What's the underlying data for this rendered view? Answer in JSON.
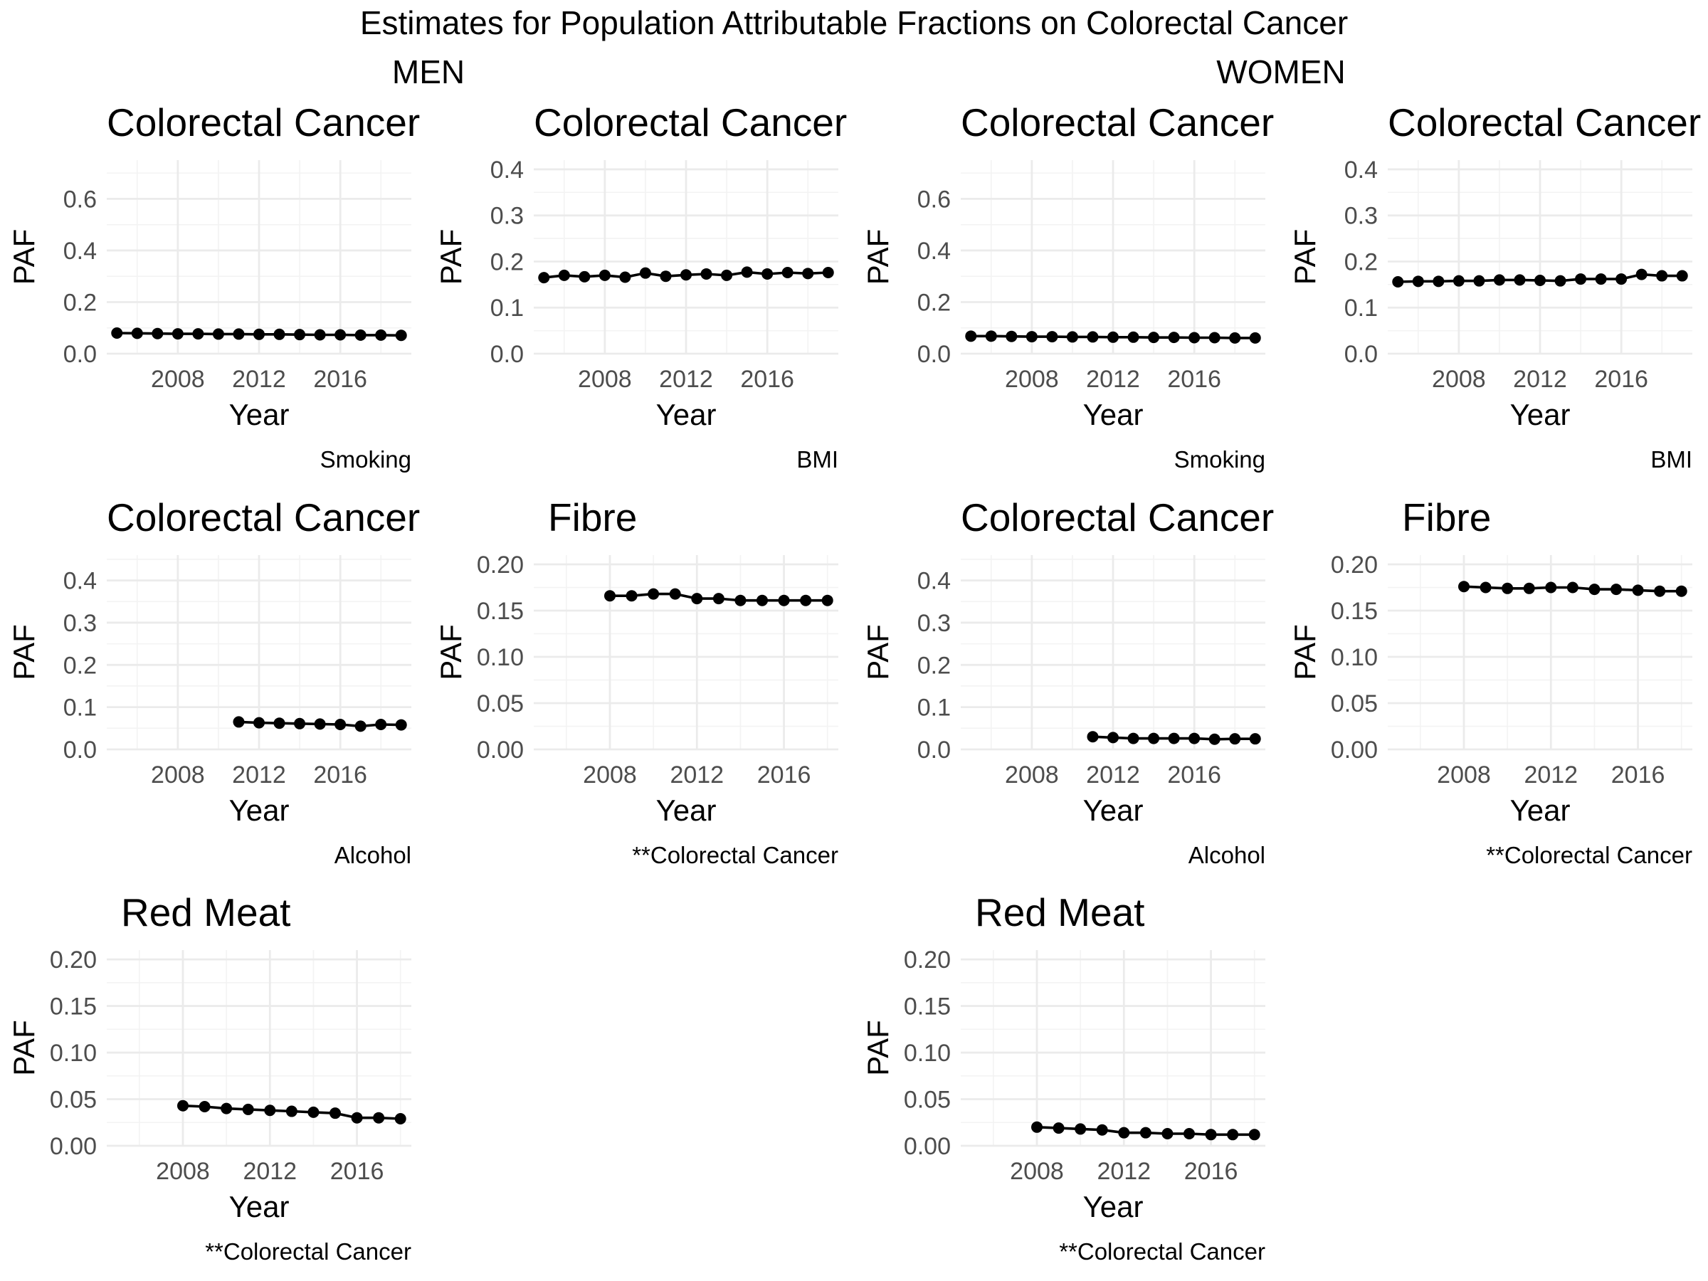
{
  "title": "Estimates for Population Attributable Fractions on Colorectal Cancer",
  "groups": {
    "men": "MEN",
    "women": "WOMEN"
  },
  "chart_data": [
    {
      "type": "line",
      "group": "MEN",
      "title": "Colorectal Cancer",
      "caption": "Smoking",
      "xlabel": "Year",
      "ylabel": "PAF",
      "xlim": [
        2004.5,
        2019.5
      ],
      "ylim": [
        0,
        0.75
      ],
      "xticks": [
        2008,
        2012,
        2016
      ],
      "yticks": [
        0.0,
        0.2,
        0.4,
        0.6
      ],
      "ytick_decimals": 1,
      "x": [
        2005,
        2006,
        2007,
        2008,
        2009,
        2010,
        2011,
        2012,
        2013,
        2014,
        2015,
        2016,
        2017,
        2018,
        2019
      ],
      "values": [
        0.08,
        0.079,
        0.078,
        0.077,
        0.077,
        0.076,
        0.076,
        0.075,
        0.075,
        0.074,
        0.073,
        0.073,
        0.072,
        0.072,
        0.071
      ]
    },
    {
      "type": "line",
      "group": "MEN",
      "title": "Colorectal Cancer",
      "caption": "BMI",
      "xlabel": "Year",
      "ylabel": "PAF",
      "xlim": [
        2004.5,
        2019.5
      ],
      "ylim": [
        0,
        0.42
      ],
      "xticks": [
        2008,
        2012,
        2016
      ],
      "yticks": [
        0.0,
        0.1,
        0.2,
        0.3,
        0.4
      ],
      "ytick_decimals": 1,
      "x": [
        2005,
        2006,
        2007,
        2008,
        2009,
        2010,
        2011,
        2012,
        2013,
        2014,
        2015,
        2016,
        2017,
        2018,
        2019
      ],
      "values": [
        0.165,
        0.17,
        0.167,
        0.17,
        0.166,
        0.175,
        0.168,
        0.171,
        0.173,
        0.17,
        0.177,
        0.173,
        0.176,
        0.174,
        0.176
      ]
    },
    {
      "type": "line",
      "group": "WOMEN",
      "title": "Colorectal Cancer",
      "caption": "Smoking",
      "xlabel": "Year",
      "ylabel": "PAF",
      "xlim": [
        2004.5,
        2019.5
      ],
      "ylim": [
        0,
        0.75
      ],
      "xticks": [
        2008,
        2012,
        2016
      ],
      "yticks": [
        0.0,
        0.2,
        0.4,
        0.6
      ],
      "ytick_decimals": 1,
      "x": [
        2005,
        2006,
        2007,
        2008,
        2009,
        2010,
        2011,
        2012,
        2013,
        2014,
        2015,
        2016,
        2017,
        2018,
        2019
      ],
      "values": [
        0.068,
        0.068,
        0.067,
        0.066,
        0.066,
        0.065,
        0.065,
        0.064,
        0.064,
        0.063,
        0.063,
        0.062,
        0.062,
        0.061,
        0.061
      ]
    },
    {
      "type": "line",
      "group": "WOMEN",
      "title": "Colorectal Cancer",
      "caption": "BMI",
      "xlabel": "Year",
      "ylabel": "PAF",
      "xlim": [
        2004.5,
        2019.5
      ],
      "ylim": [
        0,
        0.42
      ],
      "xticks": [
        2008,
        2012,
        2016
      ],
      "yticks": [
        0.0,
        0.1,
        0.2,
        0.3,
        0.4
      ],
      "ytick_decimals": 1,
      "x": [
        2005,
        2006,
        2007,
        2008,
        2009,
        2010,
        2011,
        2012,
        2013,
        2014,
        2015,
        2016,
        2017,
        2018,
        2019
      ],
      "values": [
        0.156,
        0.157,
        0.157,
        0.158,
        0.158,
        0.16,
        0.16,
        0.159,
        0.158,
        0.162,
        0.162,
        0.162,
        0.172,
        0.169,
        0.169
      ]
    },
    {
      "type": "line",
      "group": "MEN",
      "title": "Colorectal Cancer",
      "caption": "Alcohol",
      "xlabel": "Year",
      "ylabel": "PAF",
      "xlim": [
        2004.5,
        2019.5
      ],
      "ylim": [
        0,
        0.46
      ],
      "xticks": [
        2008,
        2012,
        2016
      ],
      "yticks": [
        0.0,
        0.1,
        0.2,
        0.3,
        0.4
      ],
      "ytick_decimals": 1,
      "x": [
        2011,
        2012,
        2013,
        2014,
        2015,
        2016,
        2017,
        2018,
        2019
      ],
      "values": [
        0.065,
        0.063,
        0.062,
        0.061,
        0.06,
        0.059,
        0.055,
        0.059,
        0.058
      ]
    },
    {
      "type": "line",
      "group": "MEN",
      "title": "Fibre",
      "caption": "**Colorectal Cancer",
      "xlabel": "Year",
      "ylabel": "PAF",
      "xlim": [
        2004.5,
        2018.5
      ],
      "ylim": [
        0,
        0.21
      ],
      "xticks": [
        2008,
        2012,
        2016
      ],
      "yticks": [
        0.0,
        0.05,
        0.1,
        0.15,
        0.2
      ],
      "ytick_decimals": 2,
      "x": [
        2008,
        2009,
        2010,
        2011,
        2012,
        2013,
        2014,
        2015,
        2016,
        2017,
        2018
      ],
      "values": [
        0.166,
        0.166,
        0.168,
        0.168,
        0.163,
        0.163,
        0.161,
        0.161,
        0.161,
        0.161,
        0.161
      ]
    },
    {
      "type": "line",
      "group": "WOMEN",
      "title": "Colorectal Cancer",
      "caption": "Alcohol",
      "xlabel": "Year",
      "ylabel": "PAF",
      "xlim": [
        2004.5,
        2019.5
      ],
      "ylim": [
        0,
        0.46
      ],
      "xticks": [
        2008,
        2012,
        2016
      ],
      "yticks": [
        0.0,
        0.1,
        0.2,
        0.3,
        0.4
      ],
      "ytick_decimals": 1,
      "x": [
        2011,
        2012,
        2013,
        2014,
        2015,
        2016,
        2017,
        2018,
        2019
      ],
      "values": [
        0.03,
        0.028,
        0.026,
        0.026,
        0.026,
        0.026,
        0.024,
        0.025,
        0.025
      ]
    },
    {
      "type": "line",
      "group": "WOMEN",
      "title": "Fibre",
      "caption": "**Colorectal Cancer",
      "xlabel": "Year",
      "ylabel": "PAF",
      "xlim": [
        2004.5,
        2018.5
      ],
      "ylim": [
        0,
        0.21
      ],
      "xticks": [
        2008,
        2012,
        2016
      ],
      "yticks": [
        0.0,
        0.05,
        0.1,
        0.15,
        0.2
      ],
      "ytick_decimals": 2,
      "x": [
        2008,
        2009,
        2010,
        2011,
        2012,
        2013,
        2014,
        2015,
        2016,
        2017,
        2018
      ],
      "values": [
        0.176,
        0.175,
        0.174,
        0.174,
        0.175,
        0.175,
        0.173,
        0.173,
        0.172,
        0.171,
        0.171
      ]
    },
    {
      "type": "line",
      "group": "MEN",
      "title": "Red Meat",
      "caption": "**Colorectal Cancer",
      "xlabel": "Year",
      "ylabel": "PAF",
      "xlim": [
        2004.5,
        2018.5
      ],
      "ylim": [
        0,
        0.21
      ],
      "xticks": [
        2008,
        2012,
        2016
      ],
      "yticks": [
        0.0,
        0.05,
        0.1,
        0.15,
        0.2
      ],
      "ytick_decimals": 2,
      "x": [
        2008,
        2009,
        2010,
        2011,
        2012,
        2013,
        2014,
        2015,
        2016,
        2017,
        2018
      ],
      "values": [
        0.043,
        0.042,
        0.04,
        0.039,
        0.038,
        0.037,
        0.036,
        0.035,
        0.03,
        0.03,
        0.029
      ]
    },
    {
      "type": "line",
      "group": "WOMEN",
      "title": "Red Meat",
      "caption": "**Colorectal Cancer",
      "xlabel": "Year",
      "ylabel": "PAF",
      "xlim": [
        2004.5,
        2018.5
      ],
      "ylim": [
        0,
        0.21
      ],
      "xticks": [
        2008,
        2012,
        2016
      ],
      "yticks": [
        0.0,
        0.05,
        0.1,
        0.15,
        0.2
      ],
      "ytick_decimals": 2,
      "x": [
        2008,
        2009,
        2010,
        2011,
        2012,
        2013,
        2014,
        2015,
        2016,
        2017,
        2018
      ],
      "values": [
        0.02,
        0.019,
        0.018,
        0.017,
        0.014,
        0.014,
        0.013,
        0.013,
        0.012,
        0.012,
        0.012
      ]
    }
  ]
}
